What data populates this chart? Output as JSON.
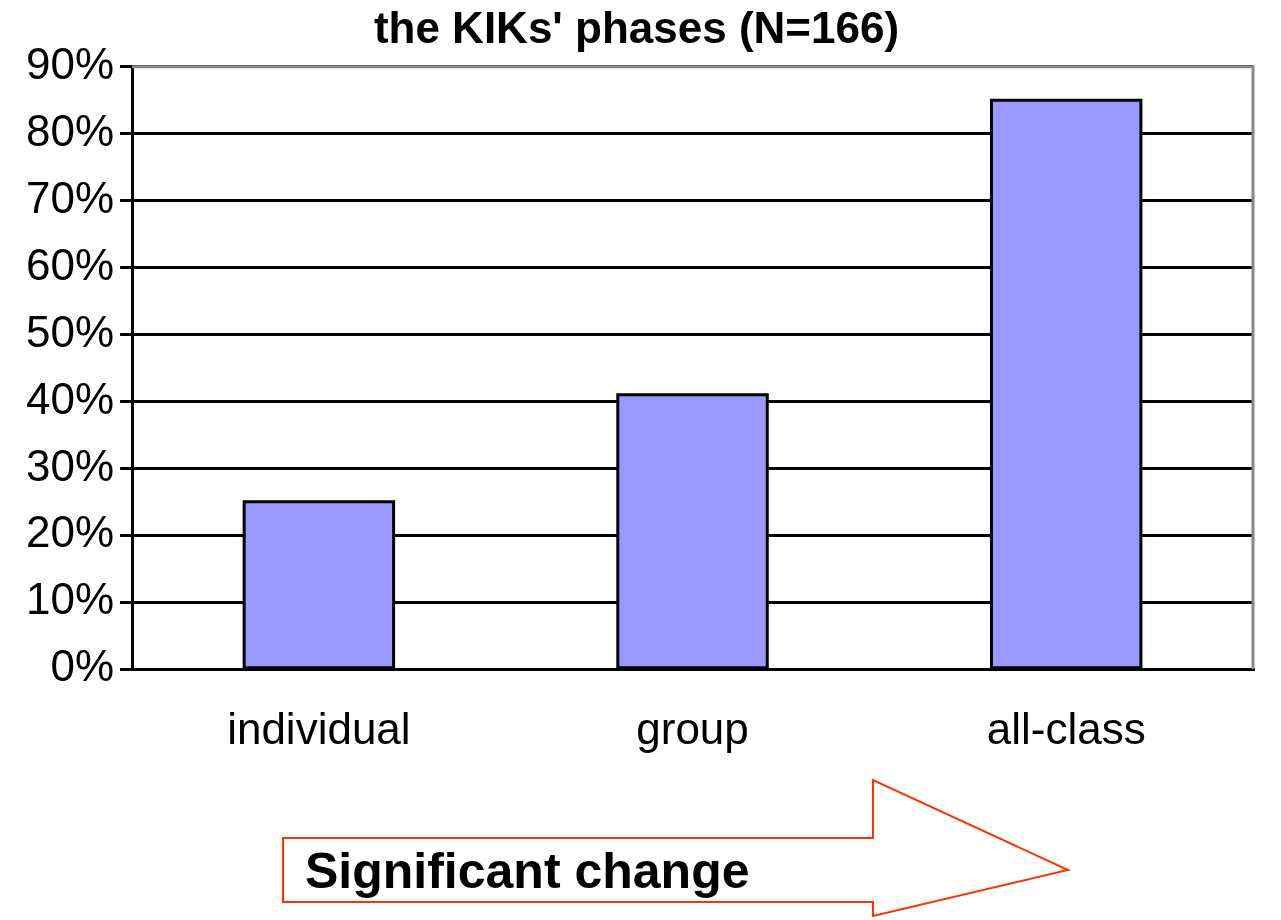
{
  "chart_data": {
    "type": "bar",
    "title": "the KIKs' phases (N=166)",
    "categories": [
      "individual",
      "group",
      "all-class"
    ],
    "values": [
      25,
      41,
      85
    ],
    "color": "#9999ff",
    "ylim": [
      0,
      90
    ],
    "yticks": [
      {
        "value": 0,
        "label": "0%"
      },
      {
        "value": 10,
        "label": "10%"
      },
      {
        "value": 20,
        "label": "20%"
      },
      {
        "value": 30,
        "label": "30%"
      },
      {
        "value": 40,
        "label": "40%"
      },
      {
        "value": 50,
        "label": "50%"
      },
      {
        "value": 60,
        "label": "60%"
      },
      {
        "value": 70,
        "label": "70%"
      },
      {
        "value": 80,
        "label": "80%"
      },
      {
        "value": 90,
        "label": "90%"
      }
    ],
    "grid": "y",
    "annotations": [
      "Significant change"
    ]
  }
}
